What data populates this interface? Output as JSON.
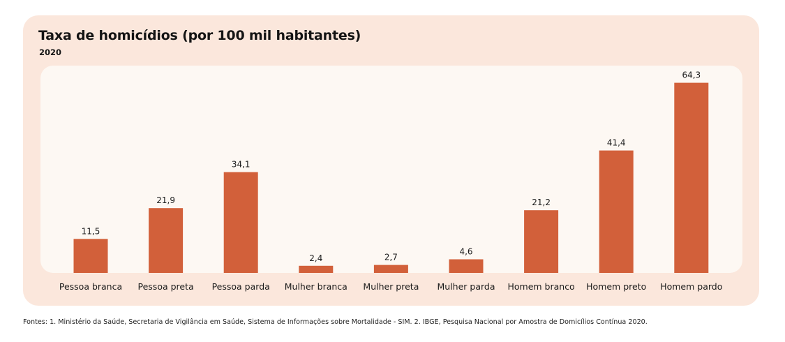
{
  "colors": {
    "card_background": "#fbe7dc",
    "plot_background": "#fdf8f3",
    "bar": "#d2603a"
  },
  "source_note": "Fontes: 1. Ministério da Saúde, Secretaria de Vigilância em Saúde, Sistema de Informações sobre Mortalidade - SIM. 2. IBGE, Pesquisa Nacional por Amostra de Domicílios Contínua 2020.",
  "chart_data": {
    "type": "bar",
    "title": "Taxa de homicídios (por 100 mil habitantes)",
    "subtitle": "2020",
    "xlabel": "",
    "ylabel": "",
    "ylim": [
      0,
      70
    ],
    "grid": false,
    "legend": "none",
    "categories": [
      "Pessoa branca",
      "Pessoa preta",
      "Pessoa parda",
      "Mulher branca",
      "Mulher preta",
      "Mulher parda",
      "Homem branco",
      "Homem preto",
      "Homem pardo"
    ],
    "values": [
      11.5,
      21.9,
      34.1,
      2.4,
      2.7,
      4.6,
      21.2,
      41.4,
      64.3
    ],
    "value_labels": [
      "11,5",
      "21,9",
      "34,1",
      "2,4",
      "2,7",
      "4,6",
      "21,2",
      "41,4",
      "64,3"
    ]
  }
}
